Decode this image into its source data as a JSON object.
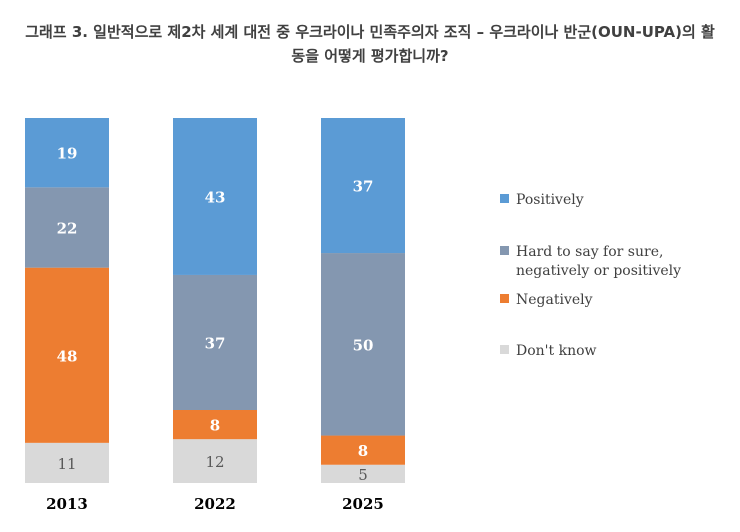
{
  "chart_data": {
    "type": "bar",
    "stacked": true,
    "percent": true,
    "title": "그래프 3. 일반적으로 제2차 세계 대전 중 우크라이나 민족주의자 조직 – 우크라이나 반군(OUN-UPA)의 활\n동을 어떻게 평가합니까?",
    "categories": [
      "2013",
      "2022",
      "2025"
    ],
    "series": [
      {
        "name": "Don't know",
        "values": [
          11,
          12,
          5
        ],
        "color": "#d9d9d9"
      },
      {
        "name": "Negatively",
        "values": [
          48,
          8,
          8
        ],
        "color": "#ed7d31"
      },
      {
        "name": "Hard to say for sure,\nnegatively or positively",
        "values": [
          22,
          37,
          50
        ],
        "color": "#8497b0"
      },
      {
        "name": "Positively",
        "values": [
          19,
          43,
          37
        ],
        "color": "#5b9bd5"
      }
    ],
    "legend_order": [
      "Positively",
      "Hard to say for sure,\nnegatively or positively",
      "Negatively",
      "Don't know"
    ],
    "legend": "right",
    "grid": false,
    "xlabel": "",
    "ylabel": ""
  }
}
